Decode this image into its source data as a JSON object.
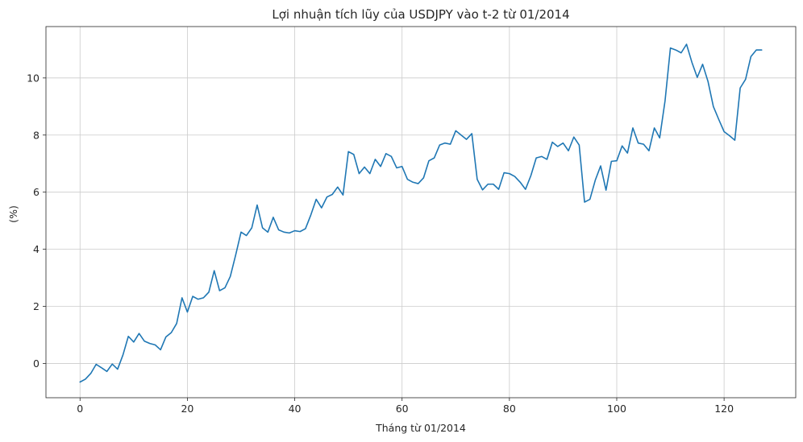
{
  "chart_data": {
    "type": "line",
    "title": "Lợi nhuận tích lũy của USDJPY vào t-2 từ 01/2014",
    "xlabel": "Tháng từ 01/2014",
    "ylabel": "(%)",
    "xlim": [
      -6.35,
      133.35
    ],
    "ylim": [
      -1.2,
      11.8
    ],
    "xticks": [
      0,
      20,
      40,
      60,
      80,
      100,
      120
    ],
    "yticks": [
      0,
      2,
      4,
      6,
      8,
      10
    ],
    "grid": true,
    "series": [
      {
        "color": "#1f77b4",
        "x": [
          0,
          1,
          2,
          3,
          4,
          5,
          6,
          7,
          8,
          9,
          10,
          11,
          12,
          13,
          14,
          15,
          16,
          17,
          18,
          19,
          20,
          21,
          22,
          23,
          24,
          25,
          26,
          27,
          28,
          29,
          30,
          31,
          32,
          33,
          34,
          35,
          36,
          37,
          38,
          39,
          40,
          41,
          42,
          43,
          44,
          45,
          46,
          47,
          48,
          49,
          50,
          51,
          52,
          53,
          54,
          55,
          56,
          57,
          58,
          59,
          60,
          61,
          62,
          63,
          64,
          65,
          66,
          67,
          68,
          69,
          70,
          71,
          72,
          73,
          74,
          75,
          76,
          77,
          78,
          79,
          80,
          81,
          82,
          83,
          84,
          85,
          86,
          87,
          88,
          89,
          90,
          91,
          92,
          93,
          94,
          95,
          96,
          97,
          98,
          99,
          100,
          101,
          102,
          103,
          104,
          105,
          106,
          107,
          108,
          109,
          110,
          111,
          112,
          113,
          114,
          115,
          116,
          117,
          118,
          119,
          120,
          121,
          122,
          123,
          124,
          125,
          126,
          127
        ],
        "values": [
          -0.65,
          -0.55,
          -0.35,
          -0.03,
          -0.15,
          -0.28,
          -0.02,
          -0.2,
          0.3,
          0.95,
          0.75,
          1.05,
          0.78,
          0.7,
          0.65,
          0.48,
          0.93,
          1.08,
          1.4,
          2.3,
          1.8,
          2.35,
          2.25,
          2.3,
          2.5,
          3.25,
          2.55,
          2.65,
          3.05,
          3.8,
          4.6,
          4.48,
          4.75,
          5.55,
          4.75,
          4.6,
          5.12,
          4.68,
          4.6,
          4.57,
          4.65,
          4.62,
          4.72,
          5.2,
          5.75,
          5.45,
          5.83,
          5.92,
          6.18,
          5.9,
          7.42,
          7.32,
          6.65,
          6.88,
          6.65,
          7.15,
          6.9,
          7.35,
          7.25,
          6.85,
          6.9,
          6.45,
          6.35,
          6.3,
          6.5,
          7.1,
          7.2,
          7.65,
          7.72,
          7.68,
          8.15,
          8.0,
          7.85,
          8.05,
          6.45,
          6.08,
          6.28,
          6.28,
          6.1,
          6.68,
          6.65,
          6.55,
          6.35,
          6.1,
          6.58,
          7.2,
          7.25,
          7.15,
          7.75,
          7.6,
          7.72,
          7.45,
          7.93,
          7.65,
          5.65,
          5.75,
          6.42,
          6.92,
          6.07,
          7.08,
          7.1,
          7.62,
          7.37,
          8.25,
          7.72,
          7.68,
          7.45,
          8.25,
          7.9,
          9.2,
          11.05,
          10.98,
          10.88,
          11.18,
          10.55,
          10.02,
          10.48,
          9.88,
          9.0,
          8.55,
          8.12,
          7.98,
          7.82,
          9.65,
          9.95,
          10.75,
          10.98,
          10.98
        ]
      }
    ]
  }
}
